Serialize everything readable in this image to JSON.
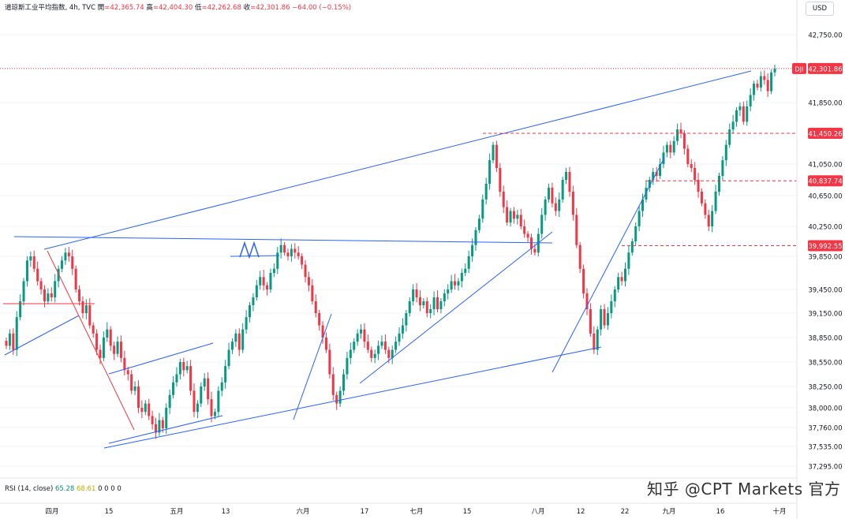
{
  "header": {
    "symbol_info": "道琼斯工业平均指数, 4h, TVC",
    "open_label": "開",
    "open": "=42,365.74",
    "high_label": "高",
    "high": "=42,404.30",
    "low_label": "低",
    "low": "=42,262.68",
    "close_label": "收",
    "close": "=42,301.86",
    "change": "−64.00 (−0.15%)"
  },
  "currency_button": "USD",
  "indicator": {
    "label": "RSI (14, close)",
    "v1": "65.28",
    "v2": "68.61",
    "rest": "0 0 0 0"
  },
  "watermark": "知乎 @CPT Markets 官方",
  "colors": {
    "up": "#089981",
    "down": "#f23645",
    "trend": "#2962ff",
    "level": "#f23645"
  },
  "chart_data": {
    "type": "candlestick",
    "symbol": "DJI",
    "price_axis": {
      "ticks": [
        42750,
        42301.86,
        41850,
        41450.26,
        41050,
        40837.74,
        40650,
        40250,
        39992.55,
        39850,
        39450,
        39150,
        38850,
        38550,
        38250,
        38000,
        37760,
        37535,
        37295
      ],
      "tick_labels": [
        "42,750.00",
        "42,301.86",
        "41,850.00",
        "41,450.26",
        "41,050.00",
        "40,837.74",
        "40,650.00",
        "40,250.00",
        "39,992.55",
        "39,850.00",
        "39,450.00",
        "39,150.00",
        "38,850.00",
        "38,550.00",
        "38,250.00",
        "38,000.00",
        "37,760.00",
        "37,535.00",
        "37,295.00"
      ],
      "range": [
        37200,
        43000
      ]
    },
    "time_axis": {
      "labels": [
        "四月",
        "15",
        "五月",
        "13",
        "六月",
        "17",
        "七月",
        "15",
        "八月",
        "12",
        "22",
        "九月",
        "16",
        "十月"
      ]
    },
    "current_price": {
      "label": "DJI",
      "value": "42,301.86"
    },
    "levels": [
      {
        "value": 41450.26,
        "label": "41,450.26"
      },
      {
        "value": 40837.74,
        "label": "40,837.74"
      },
      {
        "value": 39992.55,
        "label": "39,992.55"
      }
    ],
    "closes": [
      38750,
      38900,
      38700,
      39100,
      39300,
      39550,
      39800,
      39850,
      39700,
      39550,
      39450,
      39300,
      39400,
      39350,
      39550,
      39700,
      39800,
      39900,
      39850,
      39700,
      39450,
      39300,
      39150,
      39250,
      39000,
      38900,
      38700,
      38600,
      38850,
      38950,
      38750,
      38650,
      38800,
      38600,
      38450,
      38400,
      38200,
      38250,
      38000,
      37950,
      38050,
      37900,
      37800,
      37700,
      37850,
      37750,
      38000,
      38150,
      38300,
      38400,
      38550,
      38450,
      38500,
      38200,
      37950,
      38050,
      38250,
      38350,
      38100,
      37900,
      37950,
      38200,
      38300,
      38500,
      38700,
      38800,
      38900,
      38700,
      38950,
      39100,
      39250,
      39350,
      39500,
      39600,
      39500,
      39450,
      39650,
      39700,
      39900,
      40000,
      39900,
      39850,
      39950,
      39900,
      39850,
      39750,
      39600,
      39500,
      39300,
      39150,
      39000,
      38850,
      38700,
      38400,
      38150,
      38050,
      38200,
      38400,
      38600,
      38700,
      38800,
      38900,
      38950,
      38800,
      38700,
      38600,
      38650,
      38750,
      38800,
      38700,
      38600,
      38700,
      38800,
      38900,
      39000,
      39150,
      39300,
      39450,
      39350,
      39250,
      39300,
      39150,
      39200,
      39350,
      39200,
      39300,
      39400,
      39450,
      39550,
      39500,
      39550,
      39650,
      39700,
      39850,
      40000,
      40200,
      40350,
      40600,
      40800,
      41100,
      41300,
      41000,
      40700,
      40500,
      40300,
      40450,
      40350,
      40400,
      40250,
      40150,
      40100,
      39950,
      39900,
      40150,
      40400,
      40600,
      40750,
      40550,
      40450,
      40600,
      40850,
      40950,
      40700,
      40400,
      40000,
      39700,
      39400,
      39200,
      38900,
      38700,
      38950,
      39200,
      39000,
      39150,
      39300,
      39450,
      39600,
      39550,
      39700,
      39900,
      40050,
      40250,
      40450,
      40600,
      40750,
      40850,
      40950,
      40900,
      41050,
      41200,
      41300,
      41200,
      41350,
      41500,
      41450,
      41250,
      41050,
      41000,
      40850,
      40700,
      40550,
      40400,
      40250,
      40450,
      40700,
      40900,
      41100,
      41300,
      41500,
      41600,
      41750,
      41800,
      41600,
      41800,
      41950,
      42100,
      42050,
      42200,
      42150,
      42000,
      42250,
      42300
    ]
  }
}
